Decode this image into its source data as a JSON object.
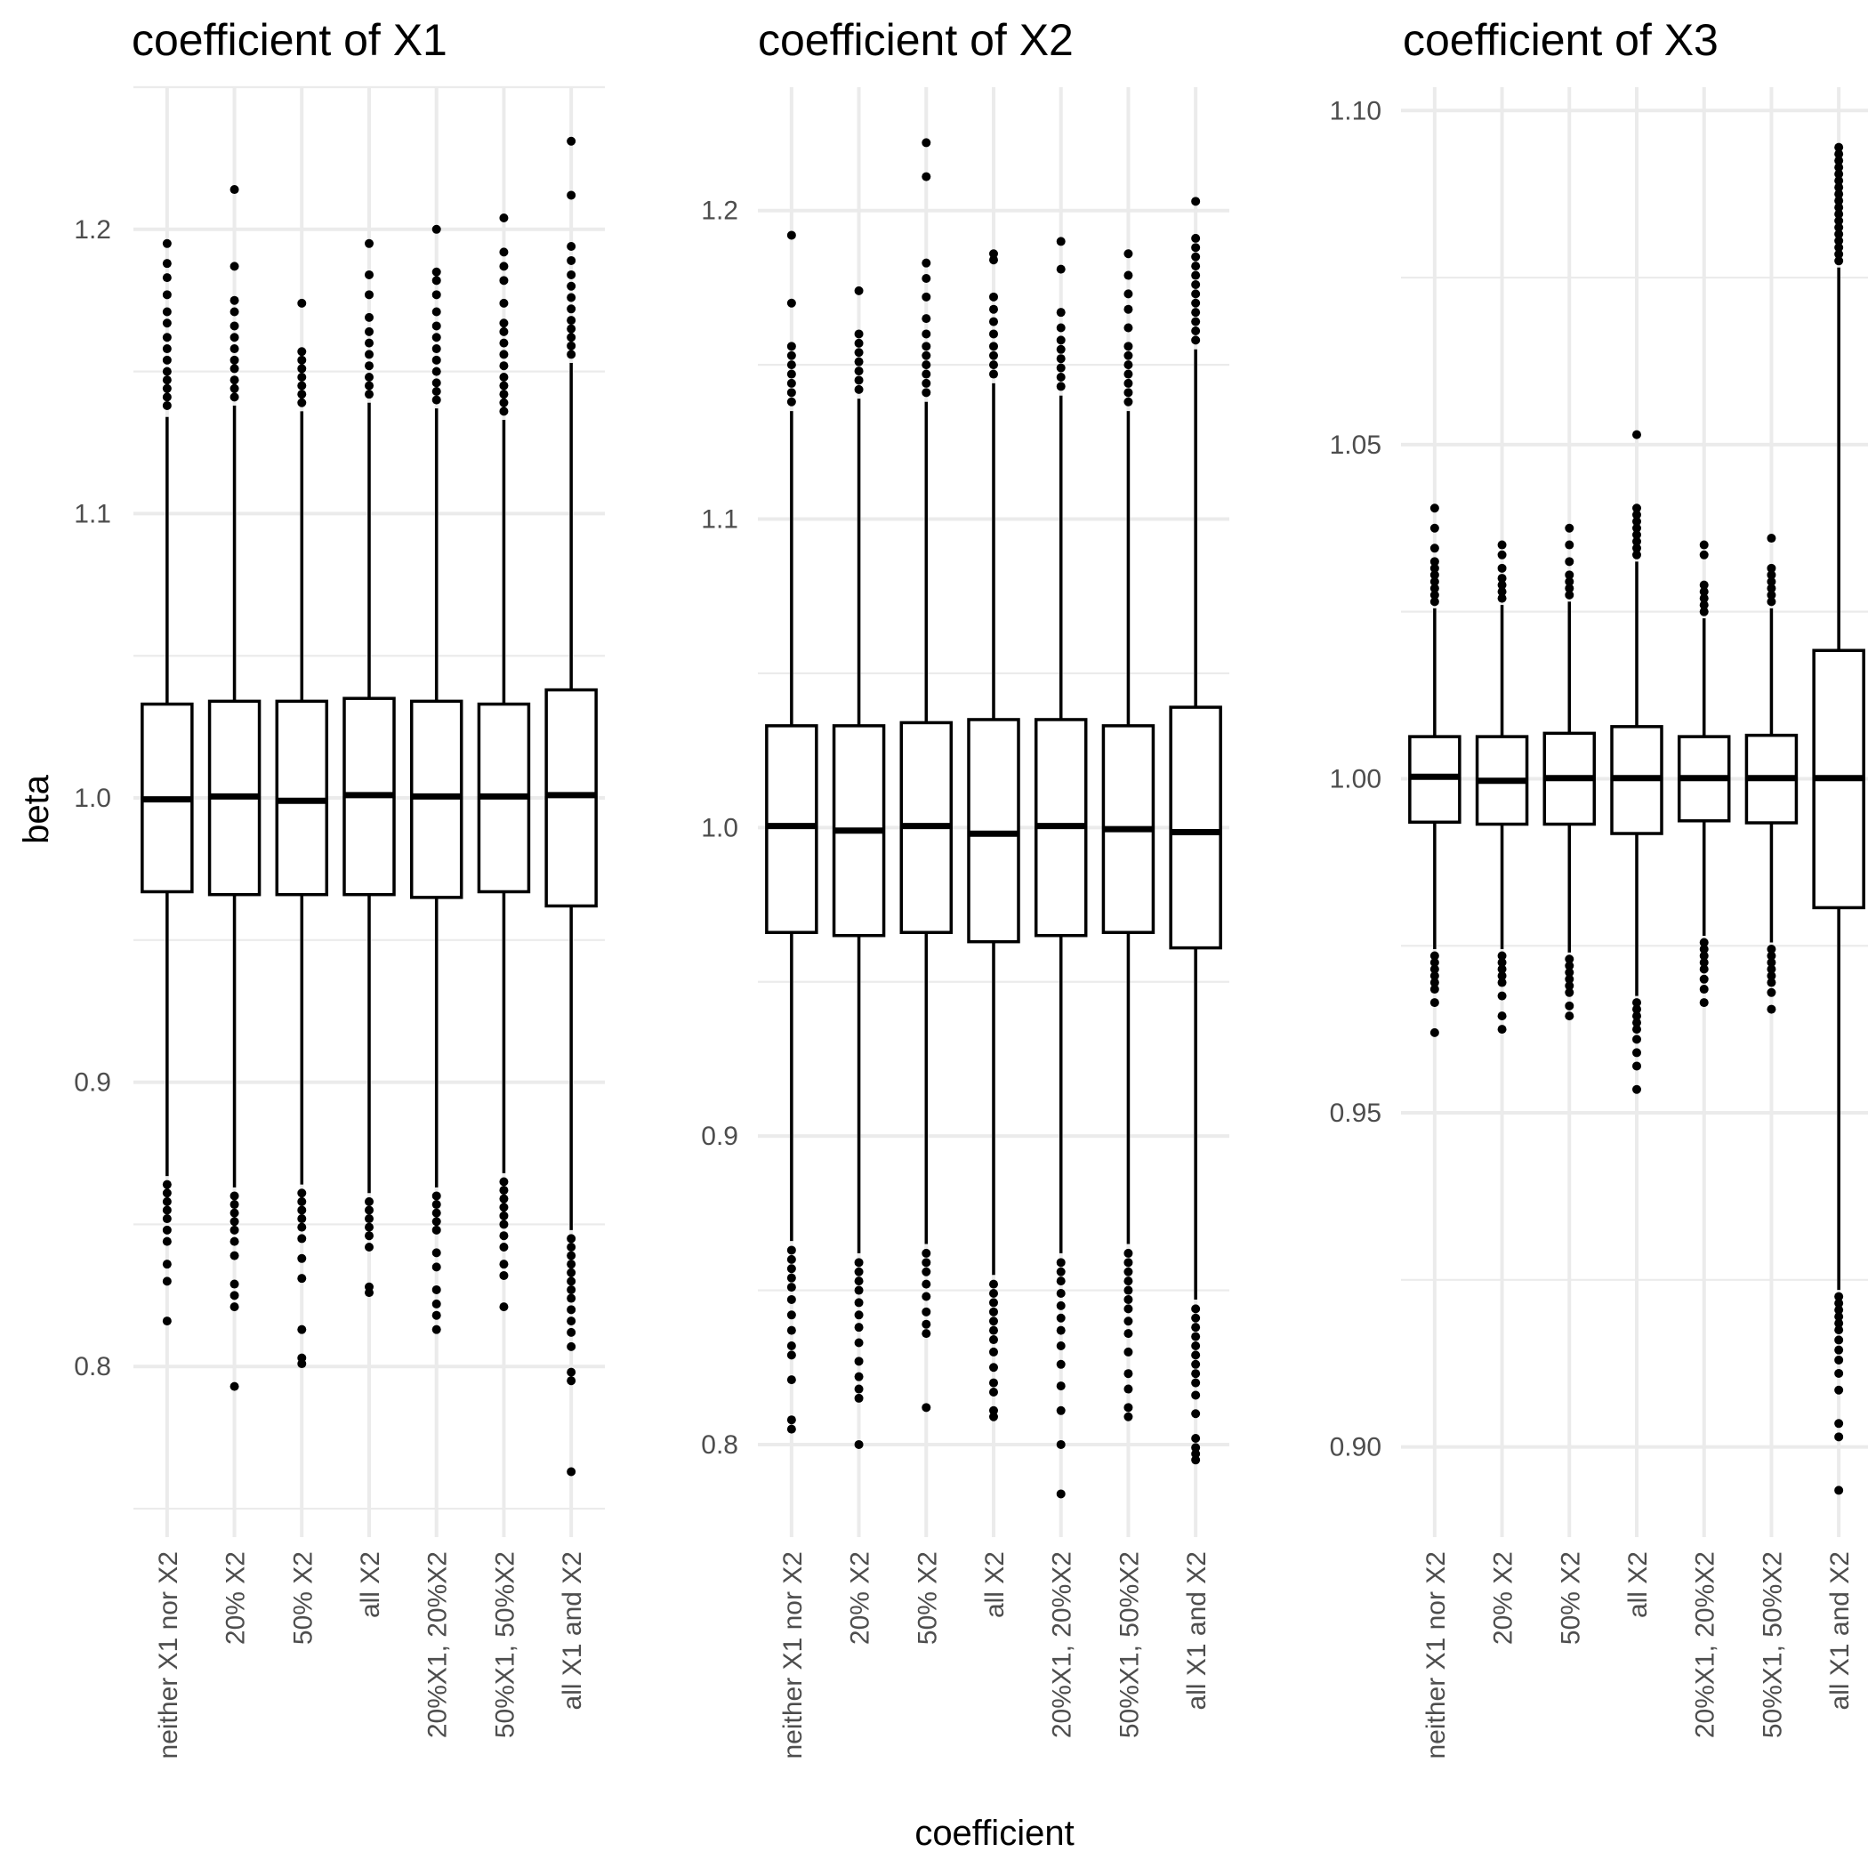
{
  "chart_data": [
    {
      "type": "box",
      "title": "coefficient of X1",
      "categories": [
        "neither X1 nor X2",
        "20% X2",
        "50% X2",
        "all X2",
        "20%X1, 20%X2",
        "50%X1, 50%X2",
        "all X1 and X2"
      ],
      "ylim": [
        0.74,
        1.25
      ],
      "yticks": [
        0.8,
        0.9,
        1.0,
        1.1,
        1.2
      ],
      "yticklabels": [
        "0.8",
        "0.9",
        "1.0",
        "1.1",
        "1.2"
      ],
      "boxes": [
        {
          "q1": 0.967,
          "median": 0.9995,
          "q3": 1.033,
          "whisker_low": 0.867,
          "whisker_high": 1.134,
          "outliers_high": [
            1.138,
            1.141,
            1.144,
            1.147,
            1.15,
            1.154,
            1.158,
            1.162,
            1.167,
            1.171,
            1.177,
            1.183,
            1.188,
            1.195
          ],
          "outliers_low": [
            0.864,
            0.861,
            0.858,
            0.855,
            0.852,
            0.848,
            0.844,
            0.836,
            0.83,
            0.816
          ]
        },
        {
          "q1": 0.966,
          "median": 1.0005,
          "q3": 1.034,
          "whisker_low": 0.863,
          "whisker_high": 1.138,
          "outliers_high": [
            1.141,
            1.144,
            1.147,
            1.151,
            1.154,
            1.158,
            1.162,
            1.166,
            1.171,
            1.175,
            1.187,
            1.214
          ],
          "outliers_low": [
            0.86,
            0.857,
            0.854,
            0.851,
            0.848,
            0.844,
            0.839,
            0.829,
            0.825,
            0.821,
            0.793
          ]
        },
        {
          "q1": 0.966,
          "median": 0.999,
          "q3": 1.034,
          "whisker_low": 0.864,
          "whisker_high": 1.136,
          "outliers_high": [
            1.139,
            1.142,
            1.145,
            1.148,
            1.151,
            1.154,
            1.157,
            1.174
          ],
          "outliers_low": [
            0.861,
            0.858,
            0.855,
            0.852,
            0.849,
            0.845,
            0.838,
            0.831,
            0.813,
            0.803,
            0.801
          ]
        },
        {
          "q1": 0.966,
          "median": 1.001,
          "q3": 1.035,
          "whisker_low": 0.861,
          "whisker_high": 1.139,
          "outliers_high": [
            1.142,
            1.145,
            1.148,
            1.152,
            1.156,
            1.16,
            1.164,
            1.169,
            1.177,
            1.184,
            1.195
          ],
          "outliers_low": [
            0.858,
            0.855,
            0.852,
            0.849,
            0.846,
            0.842,
            0.828,
            0.826
          ]
        },
        {
          "q1": 0.965,
          "median": 1.0005,
          "q3": 1.034,
          "whisker_low": 0.863,
          "whisker_high": 1.137,
          "outliers_high": [
            1.14,
            1.143,
            1.146,
            1.15,
            1.154,
            1.158,
            1.162,
            1.166,
            1.171,
            1.177,
            1.182,
            1.185,
            1.2
          ],
          "outliers_low": [
            0.86,
            0.857,
            0.854,
            0.851,
            0.848,
            0.84,
            0.835,
            0.827,
            0.822,
            0.818,
            0.813
          ]
        },
        {
          "q1": 0.967,
          "median": 1.0005,
          "q3": 1.033,
          "whisker_low": 0.868,
          "whisker_high": 1.133,
          "outliers_high": [
            1.136,
            1.139,
            1.142,
            1.145,
            1.148,
            1.152,
            1.156,
            1.16,
            1.164,
            1.167,
            1.174,
            1.182,
            1.187,
            1.192,
            1.204
          ],
          "outliers_low": [
            0.865,
            0.862,
            0.859,
            0.856,
            0.853,
            0.85,
            0.846,
            0.842,
            0.836,
            0.832,
            0.821
          ]
        },
        {
          "q1": 0.962,
          "median": 1.001,
          "q3": 1.038,
          "whisker_low": 0.848,
          "whisker_high": 1.153,
          "outliers_high": [
            1.156,
            1.159,
            1.162,
            1.165,
            1.168,
            1.172,
            1.176,
            1.18,
            1.184,
            1.189,
            1.194,
            1.212,
            1.231
          ],
          "outliers_low": [
            0.845,
            0.842,
            0.839,
            0.836,
            0.833,
            0.83,
            0.827,
            0.824,
            0.82,
            0.816,
            0.812,
            0.807,
            0.798,
            0.795,
            0.763
          ]
        }
      ]
    },
    {
      "type": "box",
      "title": "coefficient of X2",
      "categories": [
        "neither X1 nor X2",
        "20% X2",
        "50% X2",
        "all X2",
        "20%X1, 20%X2",
        "50%X1, 50%X2",
        "all X1 and X2"
      ],
      "ylim": [
        0.77,
        1.24
      ],
      "yticks": [
        0.8,
        0.9,
        1.0,
        1.1,
        1.2
      ],
      "yticklabels": [
        "0.8",
        "0.9",
        "1.0",
        "1.1",
        "1.2"
      ],
      "boxes": [
        {
          "q1": 0.966,
          "median": 1.0005,
          "q3": 1.033,
          "whisker_low": 0.866,
          "whisker_high": 1.135,
          "outliers_high": [
            1.138,
            1.141,
            1.144,
            1.147,
            1.15,
            1.153,
            1.156,
            1.17,
            1.192
          ],
          "outliers_low": [
            0.863,
            0.86,
            0.857,
            0.854,
            0.851,
            0.847,
            0.842,
            0.837,
            0.832,
            0.829,
            0.821,
            0.808,
            0.805
          ]
        },
        {
          "q1": 0.965,
          "median": 0.999,
          "q3": 1.033,
          "whisker_low": 0.862,
          "whisker_high": 1.139,
          "outliers_high": [
            1.142,
            1.145,
            1.148,
            1.151,
            1.154,
            1.157,
            1.16,
            1.174
          ],
          "outliers_low": [
            0.859,
            0.856,
            0.853,
            0.85,
            0.846,
            0.842,
            0.838,
            0.833,
            0.827,
            0.822,
            0.818,
            0.815,
            0.8
          ]
        },
        {
          "q1": 0.966,
          "median": 1.0005,
          "q3": 1.034,
          "whisker_low": 0.865,
          "whisker_high": 1.138,
          "outliers_high": [
            1.141,
            1.144,
            1.147,
            1.15,
            1.153,
            1.156,
            1.16,
            1.165,
            1.172,
            1.178,
            1.183,
            1.211,
            1.222
          ],
          "outliers_low": [
            0.862,
            0.859,
            0.856,
            0.852,
            0.848,
            0.843,
            0.839,
            0.836,
            0.812
          ]
        },
        {
          "q1": 0.963,
          "median": 0.998,
          "q3": 1.035,
          "whisker_low": 0.855,
          "whisker_high": 1.144,
          "outliers_high": [
            1.147,
            1.15,
            1.153,
            1.156,
            1.16,
            1.164,
            1.168,
            1.172,
            1.184,
            1.186
          ],
          "outliers_low": [
            0.852,
            0.849,
            0.846,
            0.843,
            0.84,
            0.837,
            0.834,
            0.83,
            0.825,
            0.82,
            0.817,
            0.811,
            0.809
          ]
        },
        {
          "q1": 0.965,
          "median": 1.0005,
          "q3": 1.035,
          "whisker_low": 0.862,
          "whisker_high": 1.14,
          "outliers_high": [
            1.143,
            1.146,
            1.149,
            1.152,
            1.155,
            1.158,
            1.162,
            1.167,
            1.181,
            1.19
          ],
          "outliers_low": [
            0.859,
            0.856,
            0.853,
            0.849,
            0.845,
            0.841,
            0.837,
            0.832,
            0.826,
            0.819,
            0.811,
            0.8,
            0.784
          ]
        },
        {
          "q1": 0.966,
          "median": 0.9995,
          "q3": 1.033,
          "whisker_low": 0.865,
          "whisker_high": 1.135,
          "outliers_high": [
            1.138,
            1.141,
            1.144,
            1.147,
            1.15,
            1.153,
            1.156,
            1.162,
            1.168,
            1.173,
            1.179,
            1.186
          ],
          "outliers_low": [
            0.862,
            0.859,
            0.856,
            0.853,
            0.85,
            0.847,
            0.844,
            0.84,
            0.836,
            0.83,
            0.823,
            0.818,
            0.812,
            0.809
          ]
        },
        {
          "q1": 0.961,
          "median": 0.9985,
          "q3": 1.039,
          "whisker_low": 0.847,
          "whisker_high": 1.155,
          "outliers_high": [
            1.158,
            1.161,
            1.164,
            1.167,
            1.17,
            1.173,
            1.176,
            1.179,
            1.182,
            1.185,
            1.188,
            1.191,
            1.203
          ],
          "outliers_low": [
            0.844,
            0.841,
            0.838,
            0.835,
            0.832,
            0.829,
            0.826,
            0.823,
            0.82,
            0.816,
            0.81,
            0.802,
            0.799,
            0.797,
            0.795
          ]
        }
      ]
    },
    {
      "type": "box",
      "title": "coefficient of X3",
      "categories": [
        "neither X1 nor X2",
        "20% X2",
        "50% X2",
        "all X2",
        "20%X1, 20%X2",
        "50%X1, 50%X2",
        "all X1 and X2"
      ],
      "ylim": [
        0.8865,
        1.1035
      ],
      "yticks": [
        0.9,
        0.95,
        1.0,
        1.05,
        1.1
      ],
      "yticklabels": [
        "0.90",
        "0.95",
        "1.00",
        "1.05",
        "1.10"
      ],
      "boxes": [
        {
          "q1": 0.9935,
          "median": 1.0003,
          "q3": 1.0063,
          "whisker_low": 0.9745,
          "whisker_high": 1.0255,
          "outliers_high": [
            1.0265,
            1.0275,
            1.0285,
            1.0295,
            1.0305,
            1.0315,
            1.0325,
            1.0345,
            1.0375,
            1.0405
          ],
          "outliers_low": [
            0.9735,
            0.9725,
            0.9715,
            0.9705,
            0.9695,
            0.9685,
            0.9665,
            0.962
          ]
        },
        {
          "q1": 0.9932,
          "median": 0.9997,
          "q3": 1.0063,
          "whisker_low": 0.9745,
          "whisker_high": 1.026,
          "outliers_high": [
            1.027,
            1.028,
            1.029,
            1.03,
            1.0315,
            1.0335,
            1.035
          ],
          "outliers_low": [
            0.9735,
            0.9725,
            0.9715,
            0.9705,
            0.9695,
            0.9675,
            0.9645,
            0.9625
          ]
        },
        {
          "q1": 0.9932,
          "median": 1.0001,
          "q3": 1.0068,
          "whisker_low": 0.974,
          "whisker_high": 1.0265,
          "outliers_high": [
            1.0275,
            1.0285,
            1.0295,
            1.0305,
            1.0325,
            1.035,
            1.0375
          ],
          "outliers_low": [
            0.973,
            0.972,
            0.971,
            0.97,
            0.969,
            0.968,
            0.966,
            0.9645
          ]
        },
        {
          "q1": 0.9918,
          "median": 1.0001,
          "q3": 1.0078,
          "whisker_low": 0.9675,
          "whisker_high": 1.0325,
          "outliers_high": [
            1.0335,
            1.0345,
            1.0355,
            1.0365,
            1.0375,
            1.0385,
            1.0395,
            1.0405,
            1.0515
          ],
          "outliers_low": [
            0.9665,
            0.9655,
            0.9645,
            0.9635,
            0.9625,
            0.961,
            0.959,
            0.957,
            0.9535
          ]
        },
        {
          "q1": 0.9937,
          "median": 1.0001,
          "q3": 1.0063,
          "whisker_low": 0.9765,
          "whisker_high": 1.024,
          "outliers_high": [
            1.025,
            1.026,
            1.027,
            1.028,
            1.029,
            1.0335,
            1.035
          ],
          "outliers_low": [
            0.9755,
            0.9745,
            0.9735,
            0.9725,
            0.9715,
            0.97,
            0.9685,
            0.9665
          ]
        },
        {
          "q1": 0.9934,
          "median": 1.0001,
          "q3": 1.0065,
          "whisker_low": 0.9755,
          "whisker_high": 1.0255,
          "outliers_high": [
            1.0265,
            1.0275,
            1.0285,
            1.0295,
            1.0305,
            1.0315,
            1.036
          ],
          "outliers_low": [
            0.9745,
            0.9735,
            0.9725,
            0.9715,
            0.9705,
            0.9695,
            0.968,
            0.9655
          ]
        },
        {
          "q1": 0.9807,
          "median": 1.0001,
          "q3": 1.0192,
          "whisker_low": 0.9235,
          "whisker_high": 1.0765,
          "outliers_high": [
            1.0775,
            1.0785,
            1.0795,
            1.0805,
            1.0815,
            1.0825,
            1.0835,
            1.0845,
            1.0855,
            1.0865,
            1.0875,
            1.0885,
            1.0895,
            1.0905,
            1.0915,
            1.0925,
            1.0935,
            1.0945
          ],
          "outliers_low": [
            0.9225,
            0.9215,
            0.9205,
            0.9195,
            0.9185,
            0.9175,
            0.916,
            0.9145,
            0.913,
            0.911,
            0.9085,
            0.9035,
            0.9015,
            0.8935
          ]
        }
      ]
    }
  ],
  "axes": {
    "ylabel": "beta",
    "xlabel": "coefficient"
  }
}
